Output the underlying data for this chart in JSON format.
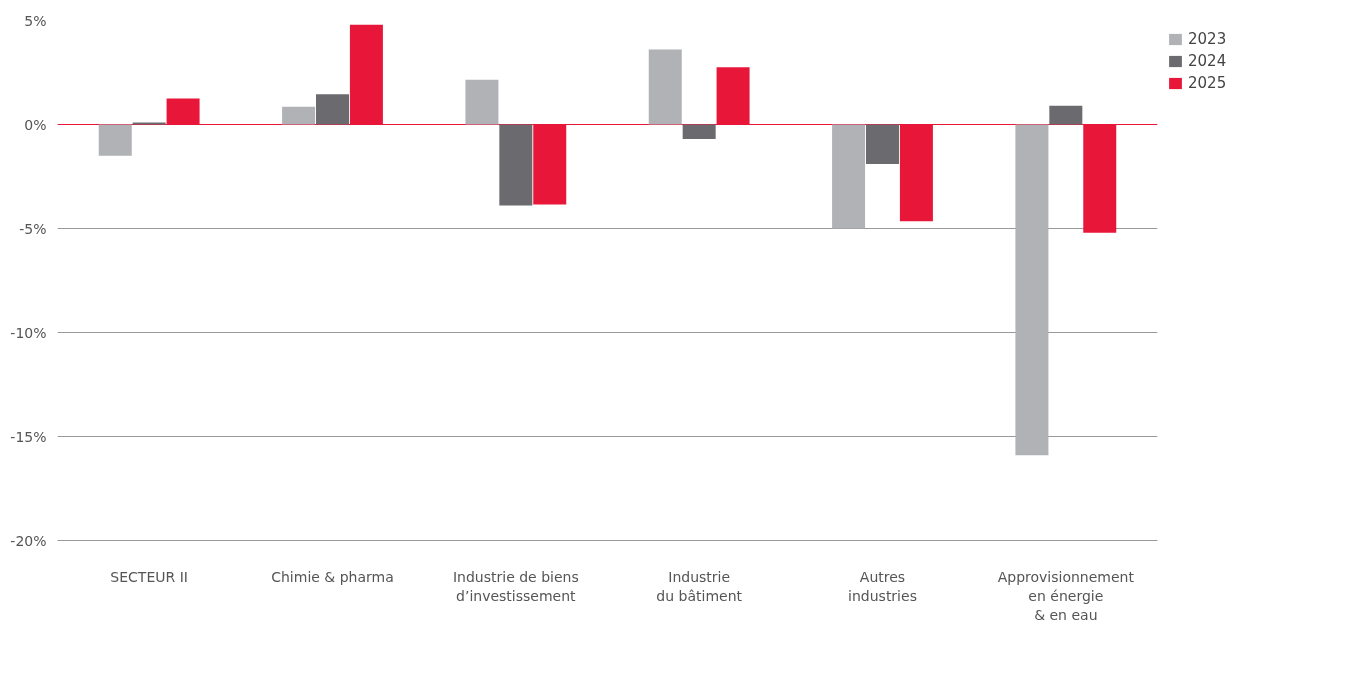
{
  "chart_data": {
    "type": "bar",
    "categories": [
      "SECTEUR II",
      "Chimie & pharma",
      "Industrie de biens\nd’investissement",
      "Industrie\ndu bâtiment",
      "Autres\nindustries",
      "Approvisionnement\nen énergie\n& en eau"
    ],
    "series": [
      {
        "name": "2023",
        "color": "#b1b2b6",
        "values": [
          -1.5,
          0.85,
          2.15,
          3.6,
          -5.0,
          -15.9
        ]
      },
      {
        "name": "2024",
        "color": "#6b6b6f",
        "values": [
          0.1,
          1.45,
          -3.9,
          -0.7,
          -1.9,
          0.9
        ]
      },
      {
        "name": "2025",
        "color": "#e8173a",
        "values": [
          1.25,
          4.8,
          -3.85,
          2.75,
          -4.65,
          -5.2
        ]
      }
    ],
    "ylim": [
      -20,
      5
    ],
    "yticks": [
      {
        "value": 5,
        "label": "5%"
      },
      {
        "value": 0,
        "label": "0%"
      },
      {
        "value": -5,
        "label": "-5%"
      },
      {
        "value": -10,
        "label": "-10%"
      },
      {
        "value": -15,
        "label": "-15%"
      },
      {
        "value": -20,
        "label": "-20%"
      }
    ],
    "ref_lines": [
      {
        "axis": "y",
        "value": 0,
        "color": "#e8173a"
      }
    ],
    "grid": "y",
    "legend": "right"
  }
}
